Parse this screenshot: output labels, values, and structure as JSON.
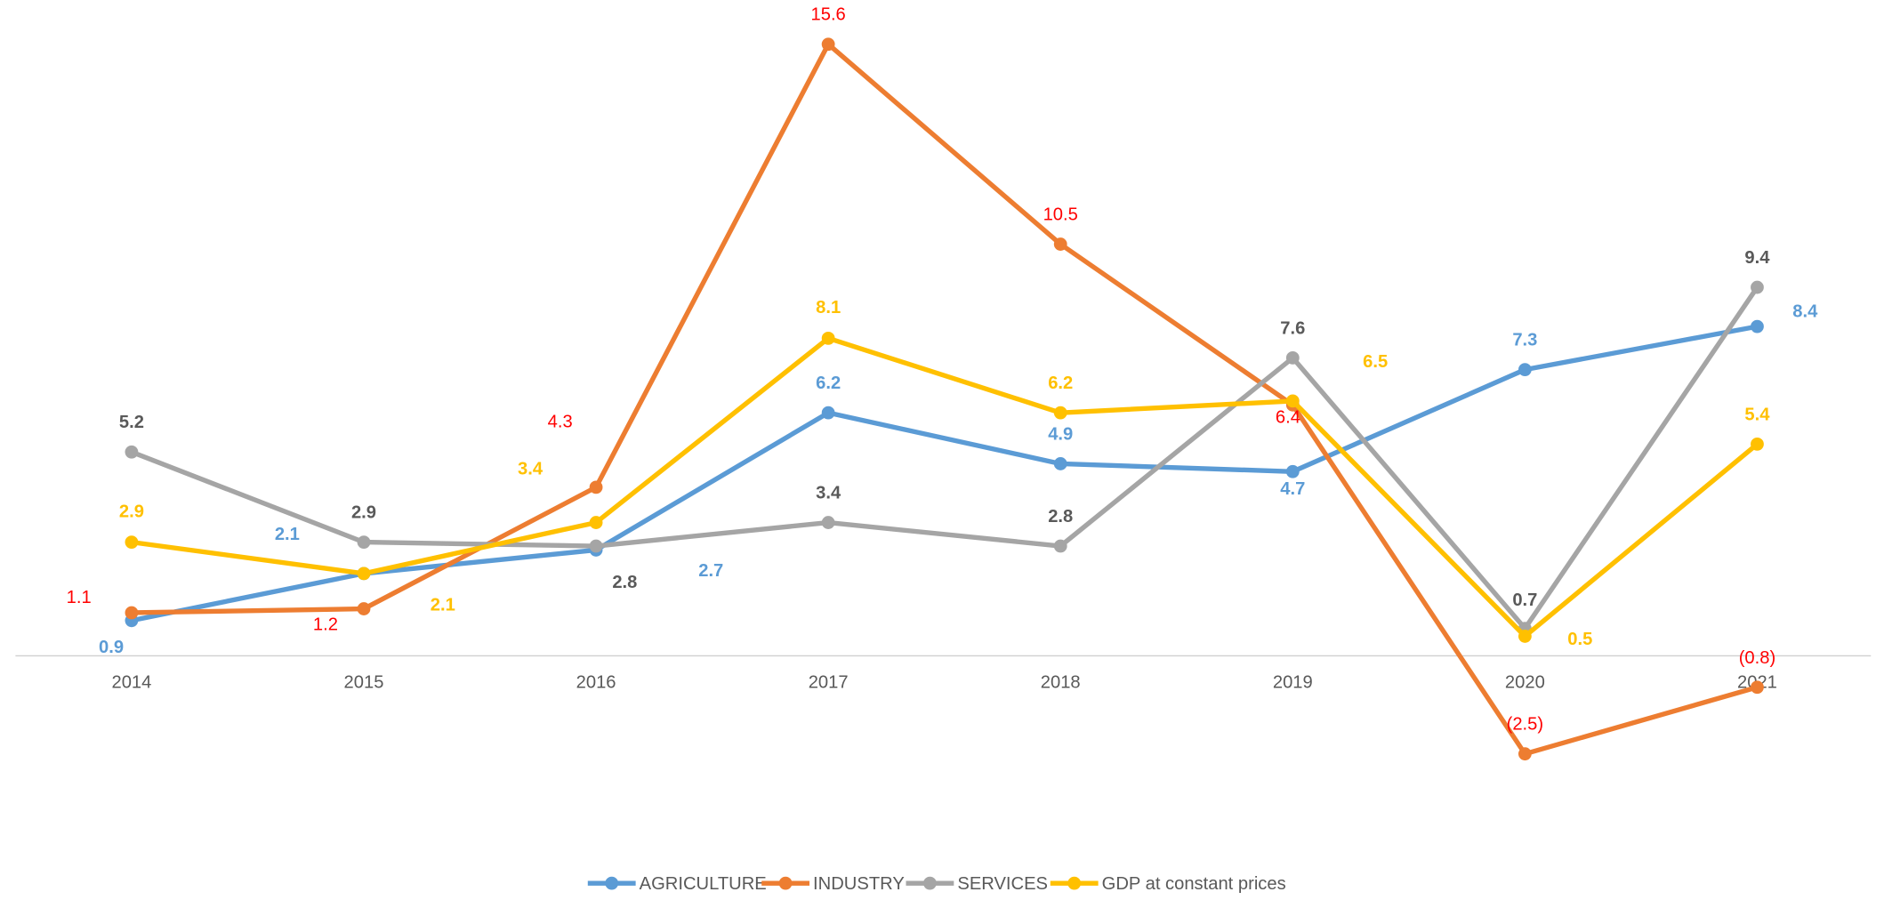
{
  "chart_data": {
    "type": "line",
    "categories": [
      "2014",
      "2015",
      "2016",
      "2017",
      "2018",
      "2019",
      "2020",
      "2021"
    ],
    "ylim": [
      -4.6,
      16.7
    ],
    "series": [
      {
        "name": "AGRICULTURE",
        "color": "#5b9bd5",
        "label_color": "#5b9bd5",
        "values": [
          0.9,
          2.1,
          2.7,
          6.2,
          4.9,
          4.7,
          7.3,
          8.4
        ]
      },
      {
        "name": "INDUSTRY",
        "color": "#ed7d31",
        "label_color": "#ff0000",
        "values": [
          1.1,
          1.2,
          4.3,
          15.6,
          10.5,
          6.4,
          -2.5,
          -0.8
        ],
        "value_labels": [
          "1.1",
          "1.2",
          "4.3",
          "15.6",
          "10.5",
          "6.4",
          "(2.5)",
          "(0.8)"
        ]
      },
      {
        "name": "SERVICES",
        "color": "#a5a5a5",
        "label_color": "#595959",
        "values": [
          5.2,
          2.9,
          2.8,
          3.4,
          2.8,
          7.6,
          0.7,
          9.4
        ]
      },
      {
        "name": "GDP at constant prices",
        "color": "#ffc000",
        "label_color": "#ffc000",
        "values": [
          2.9,
          2.1,
          3.4,
          8.1,
          6.2,
          6.5,
          0.5,
          5.4
        ]
      }
    ],
    "legend": "bottom"
  }
}
